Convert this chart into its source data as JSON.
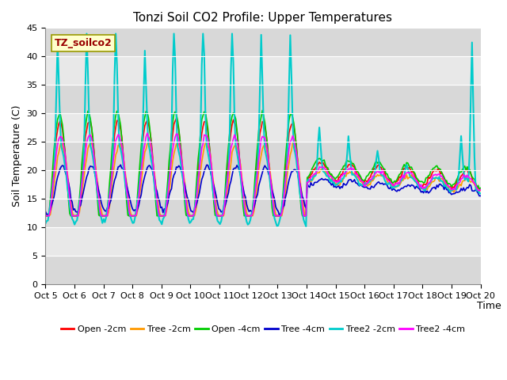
{
  "title": "Tonzi Soil CO2 Profile: Upper Temperatures",
  "xlabel": "Time",
  "ylabel": "Soil Temperature (C)",
  "ylim": [
    0,
    45
  ],
  "yticks": [
    0,
    5,
    10,
    15,
    20,
    25,
    30,
    35,
    40,
    45
  ],
  "xtick_labels": [
    "Oct 5",
    "Oct 6",
    "Oct 7",
    "Oct 8",
    "Oct 9",
    "Oct 10",
    "Oct 11",
    "Oct 12",
    "Oct 13",
    "Oct 14",
    "Oct 15",
    "Oct 16",
    "Oct 17",
    "Oct 18",
    "Oct 19",
    "Oct 20"
  ],
  "series_labels": [
    "Open -2cm",
    "Tree -2cm",
    "Open -4cm",
    "Tree -4cm",
    "Tree2 -2cm",
    "Tree2 -4cm"
  ],
  "series_colors": [
    "#ff0000",
    "#ff9900",
    "#00cc00",
    "#0000cc",
    "#00cccc",
    "#ff00ff"
  ],
  "annotation_text": "TZ_soilco2",
  "annotation_color": "#990000",
  "annotation_bg": "#ffffcc",
  "annotation_edge": "#999900",
  "bg_bands": [
    [
      0,
      5,
      "#d8d8d8"
    ],
    [
      5,
      10,
      "#e8e8e8"
    ],
    [
      10,
      15,
      "#d8d8d8"
    ],
    [
      15,
      20,
      "#e8e8e8"
    ],
    [
      20,
      25,
      "#d8d8d8"
    ],
    [
      25,
      30,
      "#e8e8e8"
    ],
    [
      30,
      35,
      "#d8d8d8"
    ],
    [
      35,
      40,
      "#e8e8e8"
    ],
    [
      40,
      45,
      "#d8d8d8"
    ]
  ],
  "figsize": [
    6.4,
    4.8
  ],
  "dpi": 100
}
